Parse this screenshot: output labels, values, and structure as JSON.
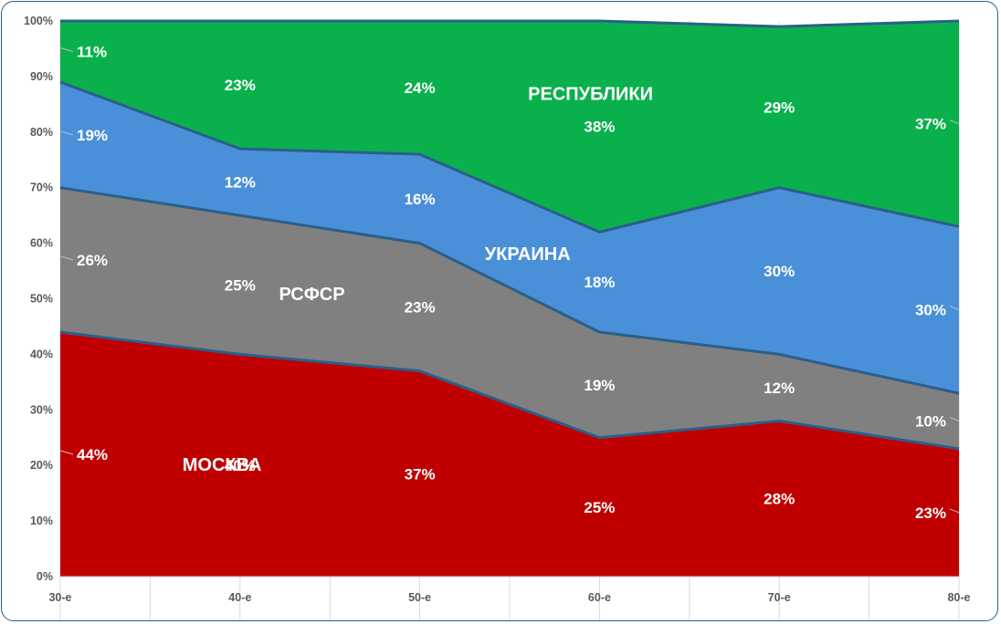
{
  "chart_data": {
    "type": "area",
    "stacked": true,
    "percent": true,
    "categories": [
      "30-е",
      "40-е",
      "50-е",
      "60-е",
      "70-е",
      "80-е"
    ],
    "ylim": [
      0,
      100
    ],
    "yticks": [
      "0%",
      "10%",
      "20%",
      "30%",
      "40%",
      "50%",
      "60%",
      "70%",
      "80%",
      "90%",
      "100%"
    ],
    "grid": true,
    "series": [
      {
        "name": "МОСКВА",
        "color": "#c00000",
        "values": [
          44,
          40,
          37,
          25,
          28,
          23
        ],
        "labels": [
          "44%",
          "40%",
          "37%",
          "25%",
          "28%",
          "23%"
        ]
      },
      {
        "name": "РСФСР",
        "color": "#808080",
        "values": [
          26,
          25,
          23,
          19,
          12,
          10
        ],
        "labels": [
          "26%",
          "25%",
          "23%",
          "19%",
          "12%",
          "10%"
        ]
      },
      {
        "name": "УКРАИНА",
        "color": "#4a90d9",
        "values": [
          19,
          12,
          16,
          18,
          30,
          30
        ],
        "labels": [
          "19%",
          "12%",
          "16%",
          "18%",
          "30%",
          "30%"
        ]
      },
      {
        "name": "РЕСПУБЛИКИ",
        "color": "#0ab04c",
        "values": [
          11,
          23,
          24,
          38,
          29,
          37
        ],
        "labels": [
          "11%",
          "23%",
          "24%",
          "38%",
          "29%",
          "37%"
        ]
      }
    ]
  }
}
